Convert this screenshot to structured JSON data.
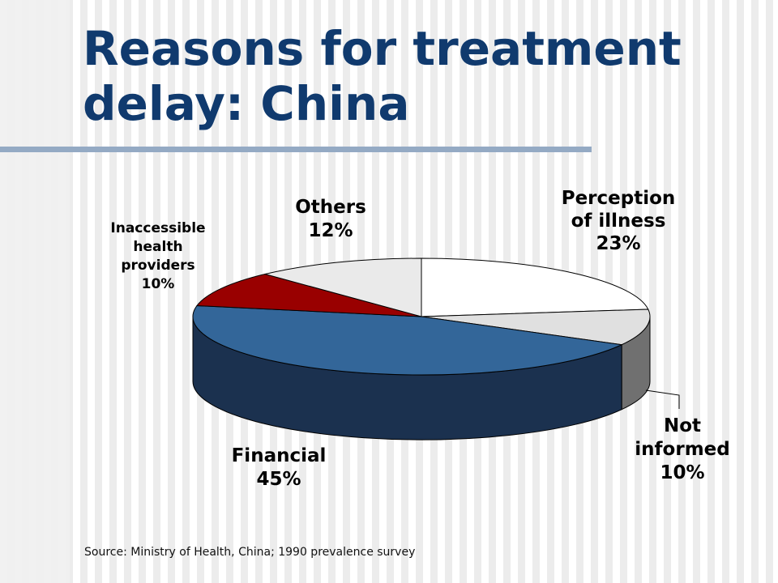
{
  "title_line1": "Reasons for treatment",
  "title_line2": "delay: China",
  "source": "Source: Ministry of Health, China; 1990 prevalence survey",
  "colors": {
    "title": "#103a6e",
    "rule": "#94aac4",
    "perception": "#ffffff",
    "not_informed": "#e0e0e0",
    "financial": "#336699",
    "inaccessible": "#990000",
    "others": "#eaeaea"
  },
  "chart_data": {
    "type": "pie",
    "style": "3d",
    "slices": [
      {
        "label_lines": [
          "Perception",
          "of illness"
        ],
        "value_label": "23%",
        "value": 23,
        "color": "#ffffff",
        "side_color": "#f0f0f0"
      },
      {
        "label_lines": [
          "Not",
          "informed"
        ],
        "value_label": "10%",
        "value": 10,
        "color": "#e0e0e0",
        "side_color": "#707070"
      },
      {
        "label_lines": [
          "Financial"
        ],
        "value_label": "45%",
        "value": 45,
        "color": "#336699",
        "side_color": "#1b314f"
      },
      {
        "label_lines": [
          "Inaccessible",
          "health",
          "providers"
        ],
        "value_label": "10%",
        "value": 10,
        "color": "#990000",
        "side_color": "#4d0000"
      },
      {
        "label_lines": [
          "Others"
        ],
        "value_label": "12%",
        "value": 12,
        "color": "#eaeaea",
        "side_color": "#9a9a9a"
      }
    ]
  }
}
